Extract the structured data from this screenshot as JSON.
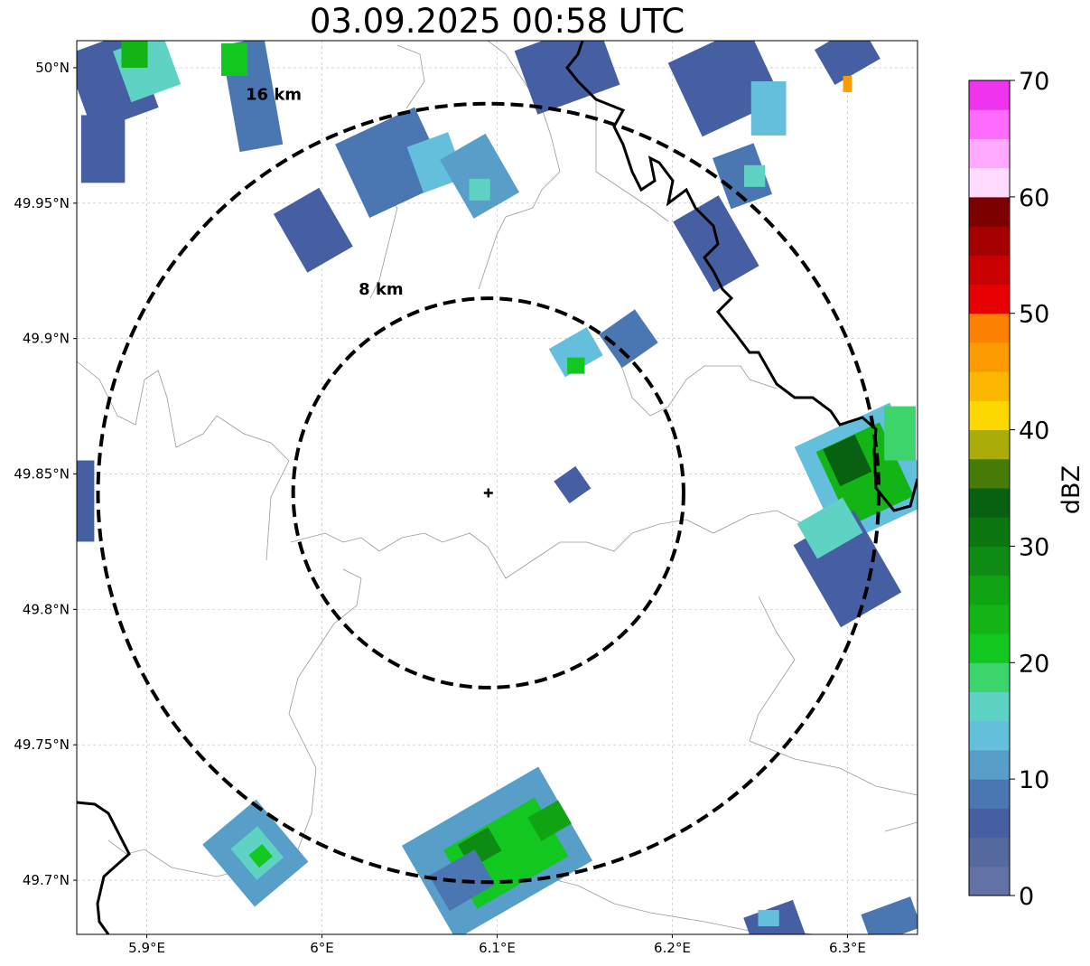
{
  "title": "03.09.2025 00:58 UTC",
  "map": {
    "lon_range": [
      5.86,
      6.34
    ],
    "lat_range": [
      49.68,
      50.01
    ],
    "center": {
      "lon": 6.095,
      "lat": 49.843
    },
    "lon_ticks": [
      {
        "value": 5.9,
        "label": "5.9°E"
      },
      {
        "value": 6.0,
        "label": "6°E"
      },
      {
        "value": 6.1,
        "label": "6.1°E"
      },
      {
        "value": 6.2,
        "label": "6.2°E"
      },
      {
        "value": 6.3,
        "label": "6.3°E"
      }
    ],
    "lat_ticks": [
      {
        "value": 49.7,
        "label": "49.7°N"
      },
      {
        "value": 49.75,
        "label": "49.75°N"
      },
      {
        "value": 49.8,
        "label": "49.8°N"
      },
      {
        "value": 49.85,
        "label": "49.85°N"
      },
      {
        "value": 49.9,
        "label": "49.9°N"
      },
      {
        "value": 49.95,
        "label": "49.95°N"
      },
      {
        "value": 50.0,
        "label": "50°N"
      }
    ],
    "rings": [
      {
        "radius_km": 8,
        "label": "8 km"
      },
      {
        "radius_km": 16,
        "label": "16 km"
      }
    ],
    "grid": true
  },
  "colorbar": {
    "label": "dBZ",
    "range": [
      0,
      70
    ],
    "step": 2.5,
    "ticks": [
      {
        "value": 0,
        "label": "0"
      },
      {
        "value": 10,
        "label": "10"
      },
      {
        "value": 20,
        "label": "20"
      },
      {
        "value": 30,
        "label": "30"
      },
      {
        "value": 40,
        "label": "40"
      },
      {
        "value": 50,
        "label": "50"
      },
      {
        "value": 60,
        "label": "60"
      },
      {
        "value": 70,
        "label": "70"
      }
    ],
    "colors": [
      "#6271a6",
      "#56699f",
      "#465fa3",
      "#4a77b1",
      "#579ec8",
      "#63bfdc",
      "#5ed3c4",
      "#3dd46b",
      "#12c71f",
      "#12b515",
      "#10a414",
      "#0e8b13",
      "#0a7710",
      "#086110",
      "#467b08",
      "#abab0a",
      "#fcd800",
      "#fcb800",
      "#fc9b00",
      "#fc8100",
      "#e60000",
      "#c80000",
      "#a40000",
      "#7c0000",
      "#ffdcff",
      "#ffaaff",
      "#ff6aff",
      "#ee34ee"
    ]
  },
  "radar_cells": [
    {
      "lon": 5.88,
      "lat": 49.995,
      "w": 0.04,
      "h": 0.03,
      "angle": -20,
      "dbz": 7
    },
    {
      "lon": 5.9,
      "lat": 50.0,
      "w": 0.03,
      "h": 0.02,
      "angle": -20,
      "dbz": 15
    },
    {
      "lon": 5.893,
      "lat": 50.005,
      "w": 0.015,
      "h": 0.01,
      "angle": 0,
      "dbz": 23
    },
    {
      "lon": 5.96,
      "lat": 49.99,
      "w": 0.025,
      "h": 0.04,
      "angle": -10,
      "dbz": 8
    },
    {
      "lon": 5.95,
      "lat": 50.003,
      "w": 0.015,
      "h": 0.012,
      "angle": 0,
      "dbz": 22
    },
    {
      "lon": 5.875,
      "lat": 49.97,
      "w": 0.025,
      "h": 0.025,
      "angle": 0,
      "dbz": 6
    },
    {
      "lon": 5.995,
      "lat": 49.94,
      "w": 0.03,
      "h": 0.025,
      "angle": -30,
      "dbz": 6
    },
    {
      "lon": 6.04,
      "lat": 49.965,
      "w": 0.05,
      "h": 0.03,
      "angle": -25,
      "dbz": 8
    },
    {
      "lon": 6.065,
      "lat": 49.965,
      "w": 0.025,
      "h": 0.018,
      "angle": -20,
      "dbz": 14
    },
    {
      "lon": 6.09,
      "lat": 49.96,
      "w": 0.03,
      "h": 0.025,
      "angle": -30,
      "dbz": 12
    },
    {
      "lon": 6.09,
      "lat": 49.955,
      "w": 0.012,
      "h": 0.008,
      "angle": 0,
      "dbz": 17
    },
    {
      "lon": 6.14,
      "lat": 50.0,
      "w": 0.05,
      "h": 0.025,
      "angle": -20,
      "dbz": 7
    },
    {
      "lon": 6.23,
      "lat": 49.995,
      "w": 0.05,
      "h": 0.03,
      "angle": -25,
      "dbz": 7
    },
    {
      "lon": 6.255,
      "lat": 49.985,
      "w": 0.02,
      "h": 0.02,
      "angle": 0,
      "dbz": 14
    },
    {
      "lon": 6.24,
      "lat": 49.96,
      "w": 0.025,
      "h": 0.02,
      "angle": -20,
      "dbz": 8
    },
    {
      "lon": 6.247,
      "lat": 49.96,
      "w": 0.012,
      "h": 0.008,
      "angle": 0,
      "dbz": 16
    },
    {
      "lon": 6.225,
      "lat": 49.935,
      "w": 0.03,
      "h": 0.03,
      "angle": -30,
      "dbz": 7
    },
    {
      "lon": 6.3,
      "lat": 50.005,
      "w": 0.03,
      "h": 0.015,
      "angle": -30,
      "dbz": 7
    },
    {
      "lon": 6.3,
      "lat": 49.994,
      "w": 0.005,
      "h": 0.006,
      "angle": 0,
      "dbz": 47
    },
    {
      "lon": 6.145,
      "lat": 49.895,
      "w": 0.025,
      "h": 0.012,
      "angle": -30,
      "dbz": 14
    },
    {
      "lon": 6.145,
      "lat": 49.89,
      "w": 0.01,
      "h": 0.006,
      "angle": 0,
      "dbz": 22
    },
    {
      "lon": 6.175,
      "lat": 49.9,
      "w": 0.025,
      "h": 0.015,
      "angle": -35,
      "dbz": 9
    },
    {
      "lon": 6.143,
      "lat": 49.846,
      "w": 0.015,
      "h": 0.01,
      "angle": -35,
      "dbz": 6
    },
    {
      "lon": 6.31,
      "lat": 49.85,
      "w": 0.06,
      "h": 0.04,
      "angle": -25,
      "dbz": 13
    },
    {
      "lon": 6.31,
      "lat": 49.85,
      "w": 0.04,
      "h": 0.03,
      "angle": -25,
      "dbz": 24
    },
    {
      "lon": 6.3,
      "lat": 49.855,
      "w": 0.02,
      "h": 0.015,
      "angle": -25,
      "dbz": 33
    },
    {
      "lon": 6.33,
      "lat": 49.865,
      "w": 0.018,
      "h": 0.02,
      "angle": 0,
      "dbz": 19
    },
    {
      "lon": 6.3,
      "lat": 49.815,
      "w": 0.04,
      "h": 0.035,
      "angle": -30,
      "dbz": 7
    },
    {
      "lon": 6.29,
      "lat": 49.83,
      "w": 0.03,
      "h": 0.015,
      "angle": -30,
      "dbz": 17
    },
    {
      "lon": 5.962,
      "lat": 49.71,
      "w": 0.04,
      "h": 0.03,
      "angle": -40,
      "dbz": 10
    },
    {
      "lon": 5.963,
      "lat": 49.71,
      "w": 0.02,
      "h": 0.015,
      "angle": -40,
      "dbz": 17
    },
    {
      "lon": 5.965,
      "lat": 49.709,
      "w": 0.01,
      "h": 0.006,
      "angle": -40,
      "dbz": 22
    },
    {
      "lon": 6.1,
      "lat": 49.71,
      "w": 0.09,
      "h": 0.04,
      "angle": -30,
      "dbz": 12
    },
    {
      "lon": 6.105,
      "lat": 49.71,
      "w": 0.06,
      "h": 0.025,
      "angle": -30,
      "dbz": 22
    },
    {
      "lon": 6.09,
      "lat": 49.712,
      "w": 0.02,
      "h": 0.01,
      "angle": -30,
      "dbz": 29
    },
    {
      "lon": 6.13,
      "lat": 49.722,
      "w": 0.02,
      "h": 0.01,
      "angle": -30,
      "dbz": 27
    },
    {
      "lon": 6.08,
      "lat": 49.7,
      "w": 0.03,
      "h": 0.015,
      "angle": -30,
      "dbz": 8
    },
    {
      "lon": 6.26,
      "lat": 49.68,
      "w": 0.03,
      "h": 0.02,
      "angle": -20,
      "dbz": 7
    },
    {
      "lon": 6.255,
      "lat": 49.686,
      "w": 0.012,
      "h": 0.006,
      "angle": 0,
      "dbz": 14
    },
    {
      "lon": 6.325,
      "lat": 49.685,
      "w": 0.03,
      "h": 0.012,
      "angle": -20,
      "dbz": 9
    },
    {
      "lon": 5.865,
      "lat": 49.84,
      "w": 0.01,
      "h": 0.03,
      "angle": 0,
      "dbz": 6
    }
  ]
}
